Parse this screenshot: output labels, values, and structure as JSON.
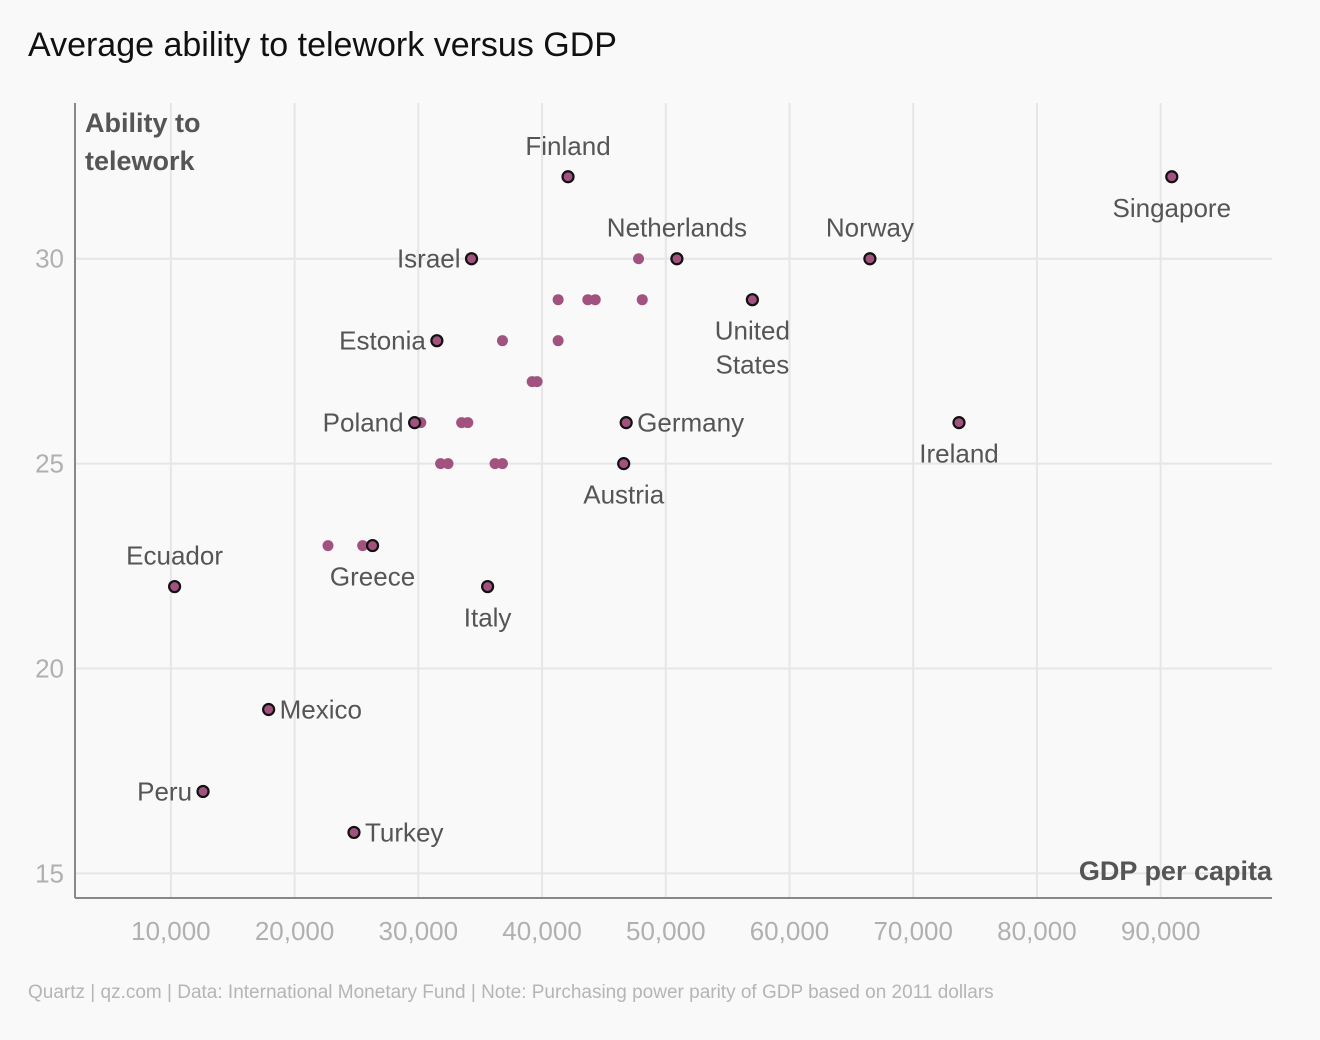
{
  "title": "Average ability to telework versus GDP",
  "source": "Quartz | qz.com | Data: International Monetary Fund | Note: Purchasing power parity of GDP based on 2011 dollars",
  "colors": {
    "point": "#a1527f",
    "outline": "#111111",
    "grid": "#e6e6e6",
    "axis": "#888888",
    "tick": "#b0b0b0",
    "label": "#555555"
  },
  "chart_data": {
    "type": "scatter",
    "xlabel": "GDP per capita",
    "ylabel": "Ability to telework",
    "ylabel_lines": [
      "Ability to",
      "telework"
    ],
    "xlim": [
      2250,
      99000
    ],
    "ylim": [
      14.4,
      33.8
    ],
    "x_ticks": [
      10000,
      20000,
      30000,
      40000,
      50000,
      60000,
      70000,
      80000,
      90000
    ],
    "x_tick_labels": [
      "10,000",
      "20,000",
      "30,000",
      "40,000",
      "50,000",
      "60,000",
      "70,000",
      "80,000",
      "90,000"
    ],
    "y_ticks": [
      15,
      20,
      25,
      30
    ],
    "y_tick_labels": [
      "15",
      "20",
      "25",
      "30"
    ],
    "grid": true,
    "labeled_points": [
      {
        "name": "Finland",
        "x": 42100,
        "y": 32,
        "lines": [
          "Finland"
        ],
        "pos": "above"
      },
      {
        "name": "Singapore",
        "x": 90900,
        "y": 32,
        "lines": [
          "Singapore"
        ],
        "pos": "below"
      },
      {
        "name": "Israel",
        "x": 34300,
        "y": 30,
        "lines": [
          "Israel"
        ],
        "pos": "left"
      },
      {
        "name": "Netherlands",
        "x": 50900,
        "y": 30,
        "lines": [
          "Netherlands"
        ],
        "pos": "above"
      },
      {
        "name": "Norway",
        "x": 66500,
        "y": 30,
        "lines": [
          "Norway"
        ],
        "pos": "above"
      },
      {
        "name": "United States",
        "x": 57000,
        "y": 29,
        "lines": [
          "United",
          "States"
        ],
        "pos": "below"
      },
      {
        "name": "Estonia",
        "x": 31500,
        "y": 28,
        "lines": [
          "Estonia"
        ],
        "pos": "left"
      },
      {
        "name": "Poland",
        "x": 29700,
        "y": 26,
        "lines": [
          "Poland"
        ],
        "pos": "left"
      },
      {
        "name": "Germany",
        "x": 46800,
        "y": 26,
        "lines": [
          "Germany"
        ],
        "pos": "right"
      },
      {
        "name": "Ireland",
        "x": 73700,
        "y": 26,
        "lines": [
          "Ireland"
        ],
        "pos": "below"
      },
      {
        "name": "Austria",
        "x": 46600,
        "y": 25,
        "lines": [
          "Austria"
        ],
        "pos": "below"
      },
      {
        "name": "Greece",
        "x": 26300,
        "y": 23,
        "lines": [
          "Greece"
        ],
        "pos": "below"
      },
      {
        "name": "Ecuador",
        "x": 10300,
        "y": 22,
        "lines": [
          "Ecuador"
        ],
        "pos": "above"
      },
      {
        "name": "Italy",
        "x": 35600,
        "y": 22,
        "lines": [
          "Italy"
        ],
        "pos": "below"
      },
      {
        "name": "Mexico",
        "x": 17900,
        "y": 19,
        "lines": [
          "Mexico"
        ],
        "pos": "right"
      },
      {
        "name": "Peru",
        "x": 12600,
        "y": 17,
        "lines": [
          "Peru"
        ],
        "pos": "left"
      },
      {
        "name": "Turkey",
        "x": 24800,
        "y": 16,
        "lines": [
          "Turkey"
        ],
        "pos": "right"
      }
    ],
    "unlabeled_points": [
      {
        "x": 47800,
        "y": 30
      },
      {
        "x": 41300,
        "y": 29
      },
      {
        "x": 43700,
        "y": 29
      },
      {
        "x": 44300,
        "y": 29
      },
      {
        "x": 48100,
        "y": 29
      },
      {
        "x": 36800,
        "y": 28
      },
      {
        "x": 41300,
        "y": 28
      },
      {
        "x": 39200,
        "y": 27
      },
      {
        "x": 39600,
        "y": 27
      },
      {
        "x": 30200,
        "y": 26
      },
      {
        "x": 33500,
        "y": 26
      },
      {
        "x": 34000,
        "y": 26
      },
      {
        "x": 31800,
        "y": 25
      },
      {
        "x": 32400,
        "y": 25
      },
      {
        "x": 36200,
        "y": 25
      },
      {
        "x": 36800,
        "y": 25
      },
      {
        "x": 22700,
        "y": 23
      },
      {
        "x": 25500,
        "y": 23
      }
    ]
  }
}
